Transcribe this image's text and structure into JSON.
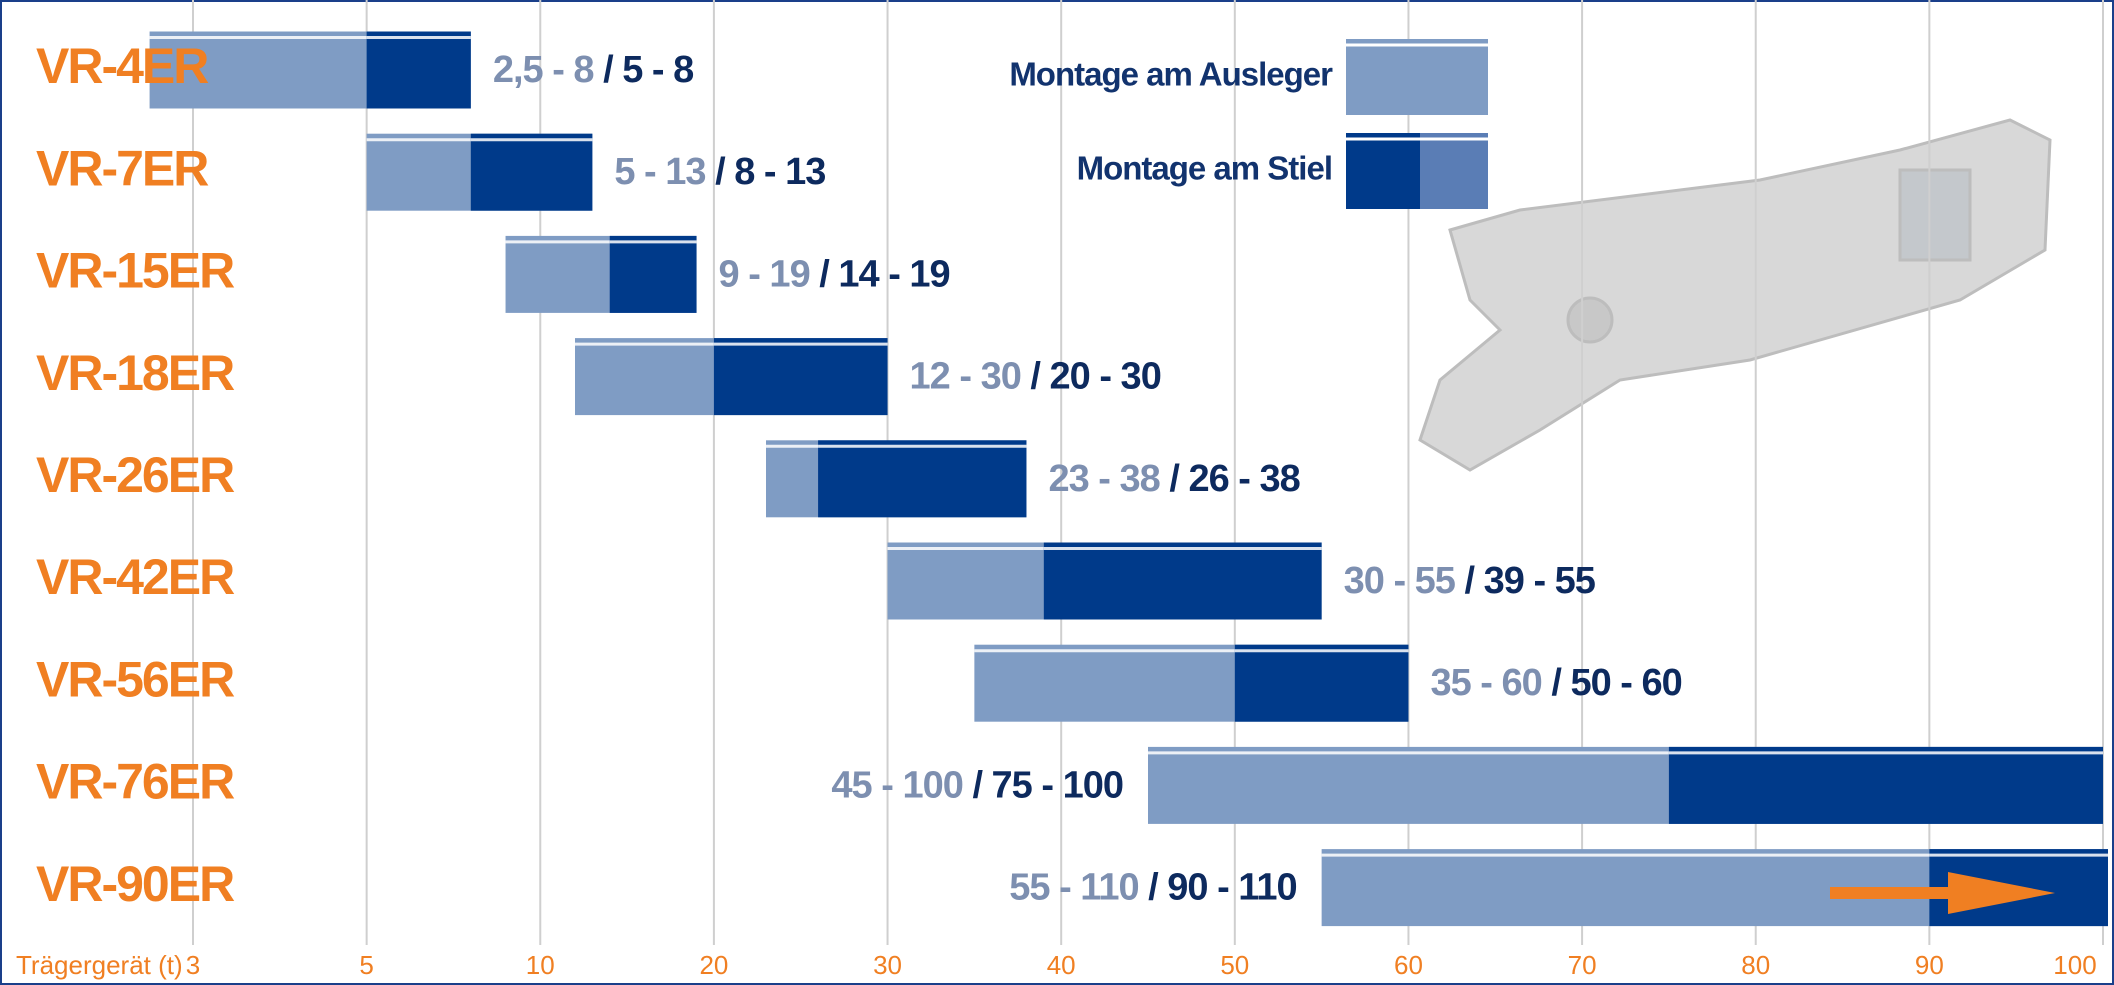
{
  "chart_data": {
    "type": "range-bar",
    "xlabel": "Trägergerät (t)",
    "categories": [
      "VR-4ER",
      "VR-7ER",
      "VR-15ER",
      "VR-18ER",
      "VR-26ER",
      "VR-42ER",
      "VR-56ER",
      "VR-76ER",
      "VR-90ER"
    ],
    "series": [
      {
        "name": "Montage am Ausleger",
        "color": "#7f9cc4",
        "values": [
          [
            2.5,
            8
          ],
          [
            5,
            13
          ],
          [
            9,
            19
          ],
          [
            12,
            30
          ],
          [
            23,
            38
          ],
          [
            30,
            55
          ],
          [
            35,
            60
          ],
          [
            45,
            100
          ],
          [
            55,
            110
          ]
        ],
        "value_labels": [
          "2,5 - 8",
          "5 - 13",
          "9 - 19",
          "12 - 30",
          "23 - 38",
          "30 - 55",
          "35 - 60",
          "45 - 100",
          "55 - 110"
        ]
      },
      {
        "name": "Montage am Stiel",
        "color": "#003a8a",
        "values": [
          [
            5,
            8
          ],
          [
            8,
            13
          ],
          [
            14,
            19
          ],
          [
            20,
            30
          ],
          [
            26,
            38
          ],
          [
            39,
            55
          ],
          [
            50,
            60
          ],
          [
            75,
            100
          ],
          [
            90,
            110
          ]
        ],
        "value_labels": [
          "/ 5 - 8",
          "/ 8 - 13",
          "/ 14 - 19",
          "/ 20 - 30",
          "/ 26 - 38",
          "/ 39 - 55",
          "/ 50 - 60",
          "/ 75 - 100",
          "/ 90 - 110"
        ]
      }
    ],
    "xlim": [
      3,
      100
    ],
    "xticks": [
      3,
      5,
      10,
      20,
      30,
      40,
      50,
      60,
      70,
      80,
      90,
      100
    ],
    "grid": true
  }
}
